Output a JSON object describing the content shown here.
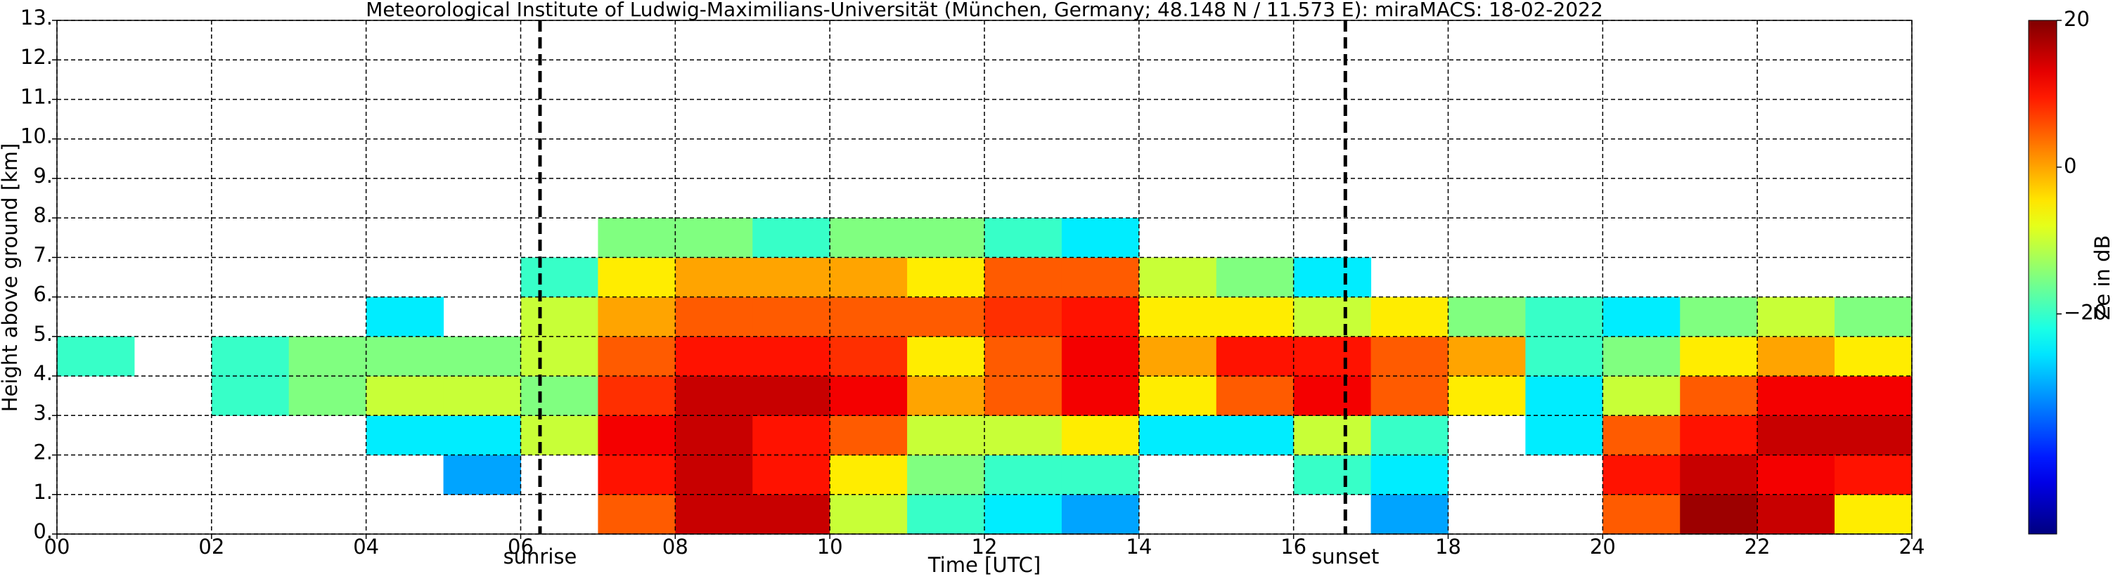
{
  "chart_data": {
    "type": "heatmap",
    "title": "Meteorological Institute of Ludwig-Maximilians-Universität (München, Germany; 48.148 N / 11.573 E):    miraMACS: 18-02-2022",
    "x_label": "Time [UTC]",
    "y_label": "Height above ground [km]",
    "xlim": [
      0,
      24
    ],
    "ylim": [
      0,
      13
    ],
    "xticks": [
      {
        "value": 0,
        "label": "00"
      },
      {
        "value": 2,
        "label": "02"
      },
      {
        "value": 4,
        "label": "04"
      },
      {
        "value": 6,
        "label": "06"
      },
      {
        "value": 8,
        "label": "08"
      },
      10,
      12,
      14,
      16,
      18,
      20,
      22,
      24
    ],
    "yticks": [
      {
        "value": 0,
        "label": "0."
      },
      {
        "value": 1,
        "label": "1."
      },
      {
        "value": 2,
        "label": "2."
      },
      {
        "value": 3,
        "label": "3."
      },
      {
        "value": 4,
        "label": "4."
      },
      {
        "value": 5,
        "label": "5."
      },
      {
        "value": 6,
        "label": "6."
      },
      {
        "value": 7,
        "label": "7."
      },
      {
        "value": 8,
        "label": "8."
      },
      {
        "value": 9,
        "label": "9."
      },
      {
        "value": 10,
        "label": "10."
      },
      {
        "value": 11,
        "label": "11."
      },
      {
        "value": 12,
        "label": "12."
      },
      {
        "value": 13,
        "label": "13."
      }
    ],
    "grid": true,
    "xbins": [
      0,
      1,
      2,
      3,
      4,
      5,
      6,
      7,
      8,
      9,
      10,
      11,
      12,
      13,
      14,
      15,
      16,
      17,
      18,
      19,
      20,
      21,
      22,
      23,
      24
    ],
    "ybins": [
      0,
      1,
      2,
      3,
      4,
      5,
      6,
      7,
      8
    ],
    "z": [
      [
        null,
        null,
        null,
        null,
        null,
        null,
        null,
        5,
        15,
        15,
        -10,
        -20,
        -25,
        -30,
        null,
        null,
        null,
        -30,
        null,
        null,
        5,
        18,
        15,
        -5
      ],
      [
        null,
        null,
        null,
        null,
        null,
        -30,
        null,
        10,
        15,
        10,
        -5,
        -15,
        -20,
        -20,
        null,
        null,
        -20,
        -25,
        null,
        null,
        10,
        15,
        12,
        10
      ],
      [
        null,
        null,
        null,
        null,
        -25,
        -25,
        -10,
        12,
        15,
        10,
        5,
        -10,
        -10,
        -5,
        -25,
        -25,
        -10,
        -20,
        null,
        -25,
        5,
        10,
        15,
        15
      ],
      [
        null,
        null,
        -20,
        -15,
        -10,
        -10,
        -15,
        8,
        15,
        15,
        12,
        0,
        5,
        12,
        -5,
        5,
        12,
        5,
        -5,
        -25,
        -10,
        5,
        12,
        12
      ],
      [
        -20,
        null,
        -20,
        -15,
        -15,
        -15,
        -10,
        5,
        10,
        10,
        8,
        -5,
        5,
        12,
        0,
        10,
        10,
        5,
        0,
        -20,
        -15,
        -5,
        0,
        -5
      ],
      [
        null,
        null,
        null,
        null,
        -25,
        null,
        -10,
        0,
        5,
        5,
        5,
        5,
        8,
        10,
        -5,
        -5,
        -10,
        -5,
        -15,
        -20,
        -25,
        -15,
        -10,
        -15
      ],
      [
        null,
        null,
        null,
        null,
        null,
        null,
        -20,
        -5,
        0,
        0,
        0,
        -5,
        5,
        5,
        -10,
        -15,
        -25,
        null,
        null,
        null,
        null,
        null,
        null,
        null
      ],
      [
        null,
        null,
        null,
        null,
        null,
        null,
        null,
        -15,
        -15,
        -20,
        -15,
        -15,
        -20,
        -25,
        null,
        null,
        null,
        null,
        null,
        null,
        null,
        null,
        null,
        null
      ]
    ],
    "colorbar_label": "Ze in dB",
    "clim": [
      -50,
      20
    ],
    "cticks": [
      20,
      0,
      {
        "value": -20,
        "label": "−20"
      }
    ],
    "markers": [
      {
        "x": 6.25,
        "label": "sunrise"
      },
      {
        "x": 16.67,
        "label": "sunset"
      }
    ]
  }
}
